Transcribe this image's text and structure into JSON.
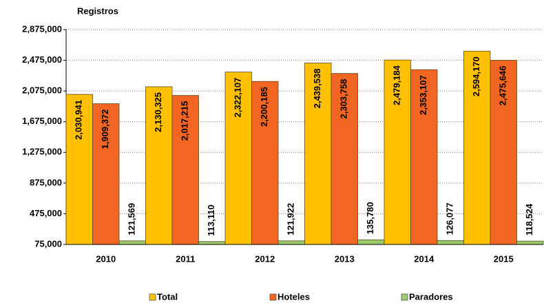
{
  "chart_data": {
    "type": "bar",
    "title": "Registros",
    "categories": [
      "2010",
      "2011",
      "2012",
      "2013",
      "2014",
      "2015"
    ],
    "series": [
      {
        "name": "Total",
        "color": "#ffc000",
        "values": [
          2030941,
          2130325,
          2322107,
          2439538,
          2479184,
          2594170
        ],
        "value_labels": [
          "2,030,941",
          "2,130,325",
          "2,322,107",
          "2,439,538",
          "2,479,184",
          "2,594,170"
        ]
      },
      {
        "name": "Hoteles",
        "color": "#f26522",
        "values": [
          1909372,
          2017215,
          2200185,
          2303758,
          2353107,
          2475646
        ],
        "value_labels": [
          "1,909,372",
          "2,017,215",
          "2,200,185",
          "2,303,758",
          "2,353,107",
          "2,475,646"
        ]
      },
      {
        "name": "Paradores",
        "color": "#9bcb6a",
        "values": [
          121569,
          113110,
          121922,
          135780,
          126077,
          118524
        ],
        "value_labels": [
          "121,569",
          "113,110",
          "121,922",
          "135,780",
          "126,077",
          "118,524"
        ]
      }
    ],
    "ylim": [
      75000,
      2875000
    ],
    "yticks": [
      {
        "value": 75000,
        "label": "75,000"
      },
      {
        "value": 475000,
        "label": "475,000"
      },
      {
        "value": 875000,
        "label": "875,000"
      },
      {
        "value": 1275000,
        "label": "1,275,000"
      },
      {
        "value": 1675000,
        "label": "1,675,000"
      },
      {
        "value": 2075000,
        "label": "2,075,000"
      },
      {
        "value": 2475000,
        "label": "2,475,000"
      },
      {
        "value": 2875000,
        "label": "2,875,000"
      }
    ],
    "grid": true
  }
}
